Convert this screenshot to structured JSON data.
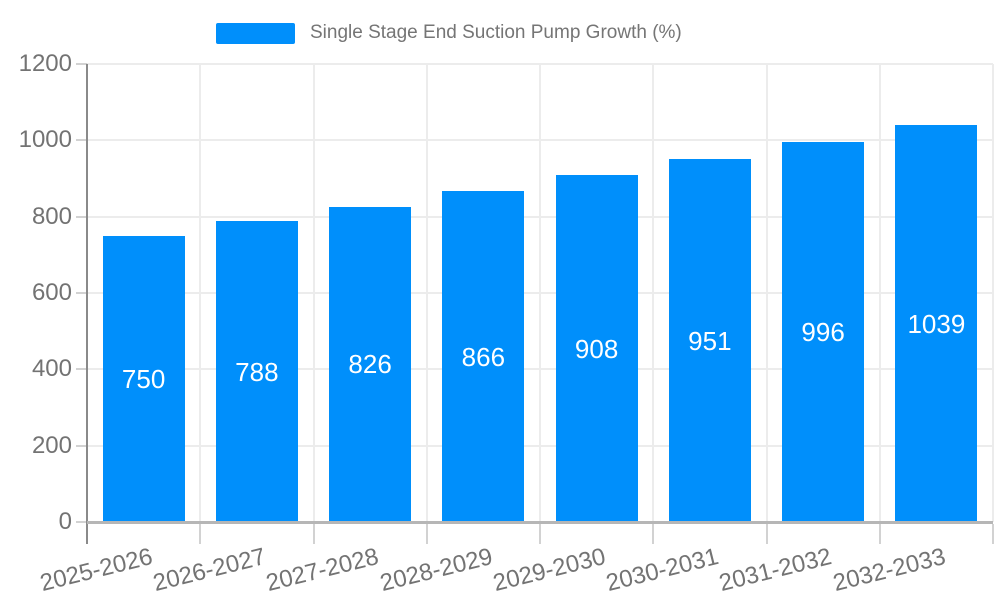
{
  "legend": {
    "label": "Single Stage End Suction Pump Growth (%)"
  },
  "chart_data": {
    "type": "bar",
    "title": "Single Stage End Suction Pump Growth (%)",
    "series_name": "Single Stage End Suction Pump Growth (%)",
    "categories": [
      "2025-2026",
      "2026-2027",
      "2027-2028",
      "2028-2029",
      "2029-2030",
      "2030-2031",
      "2031-2032",
      "2032-2033"
    ],
    "values": [
      750,
      788,
      826,
      866,
      908,
      951,
      996,
      1039
    ],
    "data_labels": [
      "750",
      "788",
      "826",
      "866",
      "908",
      "951",
      "996",
      "1039"
    ],
    "yticks": [
      0,
      200,
      400,
      600,
      800,
      1000,
      1200
    ],
    "ylim": [
      0,
      1200
    ],
    "xlabel": "",
    "ylabel": "",
    "grid": true,
    "legend_position": "top",
    "colors": {
      "bar": "#008FFB",
      "data_label": "#ffffff",
      "tick_text": "#737373",
      "legend_text": "#757575",
      "gridline": "#ececec",
      "y_axis_line": "#8a8a8a",
      "x_axis_line": "#b6b6b6",
      "tick_mark": "#d2d2d2",
      "background": "#ffffff"
    }
  }
}
